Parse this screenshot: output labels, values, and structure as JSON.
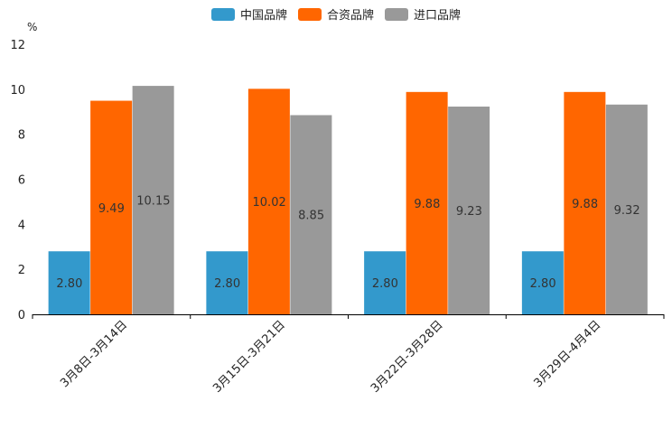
{
  "chart_data": {
    "type": "bar",
    "title": "",
    "xlabel": "",
    "ylabel": "",
    "unit": "%",
    "ylim": [
      0,
      12
    ],
    "yticks": [
      0,
      2,
      4,
      6,
      8,
      10,
      12
    ],
    "categories": [
      "3月8日-3月14日",
      "3月15日-3月21日",
      "3月22日-3月28日",
      "3月29日-4月4日"
    ],
    "series": [
      {
        "name": "中国品牌",
        "color": "#3399CC",
        "values": [
          2.8,
          2.8,
          2.8,
          2.8
        ],
        "labels": [
          "2.80",
          "2.80",
          "2.80",
          "2.80"
        ]
      },
      {
        "name": "合资品牌",
        "color": "#FF6600",
        "values": [
          9.49,
          10.02,
          9.88,
          9.88
        ],
        "labels": [
          "9.49",
          "10.02",
          "9.88",
          "9.88"
        ]
      },
      {
        "name": "进口品牌",
        "color": "#999999",
        "values": [
          10.15,
          8.85,
          9.23,
          9.32
        ],
        "labels": [
          "10.15",
          "8.85",
          "9.23",
          "9.32"
        ]
      }
    ],
    "legend_position": "top-center",
    "grid": false
  }
}
